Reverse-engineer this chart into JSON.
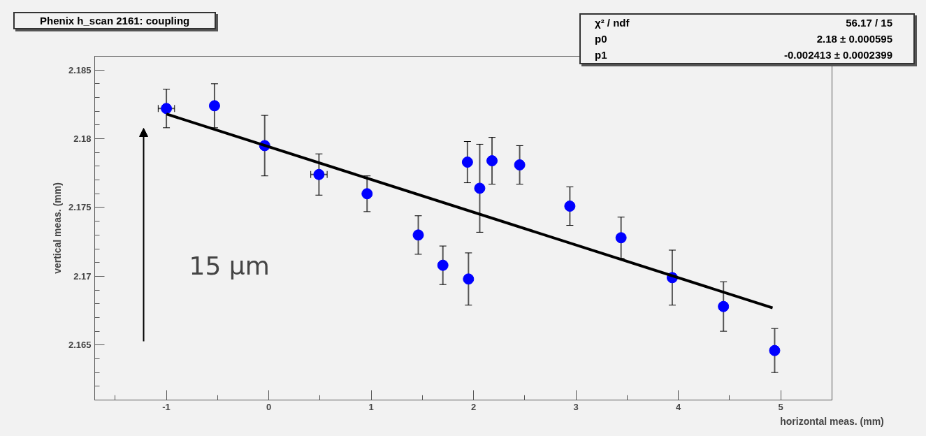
{
  "chart_data": {
    "type": "scatter",
    "title": "Phenix h_scan 2161: coupling",
    "xlabel": "horizontal meas. (mm)",
    "ylabel": "vertical meas. (mm)",
    "xlim": [
      -1.7,
      5.5
    ],
    "ylim": [
      2.161,
      2.186
    ],
    "xticks": [
      -1,
      0,
      1,
      2,
      3,
      4,
      5
    ],
    "yticks": [
      2.165,
      2.17,
      2.175,
      2.18,
      2.185
    ],
    "grid": false,
    "series": [
      {
        "color": "#0000ff",
        "marker": "circle",
        "x": [
          -1.0,
          -0.53,
          -0.04,
          0.49,
          0.96,
          1.46,
          1.7,
          1.95,
          1.94,
          2.06,
          2.18,
          2.45,
          2.94,
          3.44,
          3.94,
          4.44,
          4.94
        ],
        "values": [
          2.1822,
          2.1824,
          2.1795,
          2.1774,
          2.176,
          2.173,
          2.1708,
          2.1698,
          2.1783,
          2.1764,
          2.1784,
          2.1781,
          2.1751,
          2.1728,
          2.1699,
          2.1678,
          2.1646
        ],
        "errors": [
          0.0014,
          0.0016,
          0.0022,
          0.0015,
          0.0013,
          0.0014,
          0.0014,
          0.0019,
          0.0015,
          0.0032,
          0.0017,
          0.0014,
          0.0014,
          0.0015,
          0.002,
          0.0018,
          0.0016
        ],
        "xerrors": [
          0.08,
          null,
          null,
          0.08,
          null,
          null,
          null,
          null,
          null,
          null,
          null,
          null,
          null,
          null,
          null,
          null,
          null
        ]
      },
      {
        "type": "line",
        "color": "#000000",
        "x": [
          -1.0,
          4.92
        ],
        "values": [
          2.1818,
          2.1677
        ]
      }
    ],
    "annotations": [
      "χ² / ndf",
      "56.17 / 15",
      "p0",
      "2.18 ± 0.000595",
      "p1",
      "-0.002413 ± 0.0002399",
      "15 μm"
    ]
  }
}
